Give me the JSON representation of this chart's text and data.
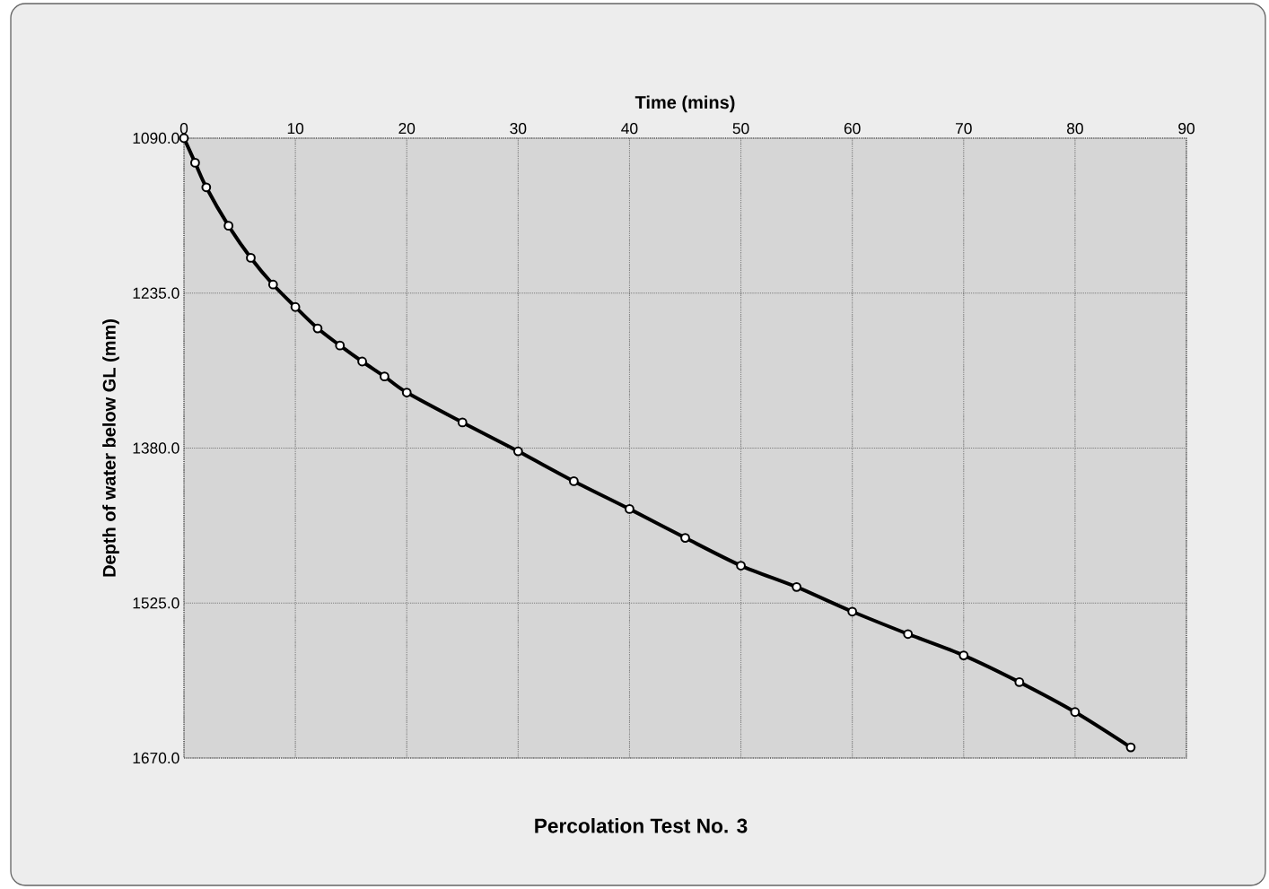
{
  "chart_data": {
    "type": "line",
    "title": "Percolation Test No. 3",
    "xlabel": "Time (mins)",
    "ylabel": "Depth of water below GL (mm)",
    "x": [
      0,
      1,
      2,
      4,
      6,
      8,
      10,
      12,
      14,
      16,
      18,
      20,
      25,
      30,
      35,
      40,
      45,
      50,
      55,
      60,
      65,
      70,
      75,
      80,
      85
    ],
    "values": [
      1090,
      1113,
      1136,
      1172,
      1202,
      1227,
      1248,
      1268,
      1284,
      1299,
      1313,
      1328,
      1356,
      1383,
      1411,
      1437,
      1464,
      1490,
      1510,
      1533,
      1554,
      1574,
      1599,
      1627,
      1660
    ],
    "color": "#000000",
    "marker": "circle",
    "line_style": "solid",
    "grid": true,
    "xlim": [
      0,
      90
    ],
    "xticks": [
      0,
      10,
      20,
      30,
      40,
      50,
      60,
      70,
      80,
      90
    ],
    "ylim": [
      1670,
      1090
    ],
    "yticks": [
      {
        "value": 1090,
        "label": "1090.0"
      },
      {
        "value": 1235,
        "label": "1235.0"
      },
      {
        "value": 1380,
        "label": "1380.0"
      },
      {
        "value": 1525,
        "label": "1525.0"
      },
      {
        "value": 1670,
        "label": "1670.0"
      }
    ]
  }
}
